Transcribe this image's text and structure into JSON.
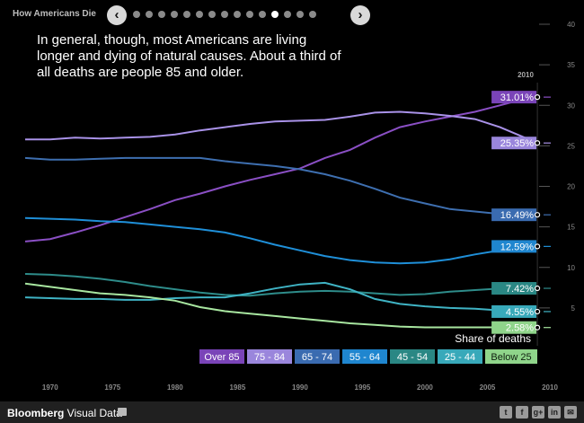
{
  "header": {
    "title": "How Americans Die",
    "prev_icon": "chevron-left-icon",
    "next_icon": "chevron-right-icon",
    "slide_count": 15,
    "active_slide": 11
  },
  "headline": "In general, though, most Americans are living longer and dying of natural causes. About a third of all deaths are people 85 and older.",
  "chart_data": {
    "type": "line",
    "xlabel": "",
    "ylabel": "Share of deaths",
    "xlim": [
      1968,
      2010
    ],
    "ylim": [
      0,
      40
    ],
    "x_ticks": [
      1970,
      1975,
      1980,
      1985,
      1990,
      1995,
      2000,
      2005,
      2010
    ],
    "y_ticks": [
      5,
      10,
      15,
      20,
      25,
      30,
      35,
      40
    ],
    "end_year_label": "2010",
    "x": [
      1968,
      1970,
      1972,
      1974,
      1976,
      1978,
      1980,
      1982,
      1984,
      1986,
      1988,
      1990,
      1992,
      1994,
      1996,
      1998,
      2000,
      2002,
      2004,
      2006,
      2008,
      2009
    ],
    "series": [
      {
        "name": "Over 85",
        "color": "#8a4fc4",
        "label_color": "#7a44b8",
        "end_label": "31.01%",
        "values": [
          13.2,
          13.5,
          14.3,
          15.2,
          16.2,
          17.2,
          18.3,
          19.1,
          20.0,
          20.8,
          21.5,
          22.2,
          23.5,
          24.5,
          26.0,
          27.3,
          28.0,
          28.6,
          29.2,
          30.0,
          30.8,
          31.01
        ]
      },
      {
        "name": "75 - 84",
        "color": "#a992e8",
        "label_color": "#9a86dc",
        "end_label": "25.35%",
        "values": [
          25.8,
          25.8,
          26.0,
          25.9,
          26.0,
          26.1,
          26.4,
          26.9,
          27.3,
          27.7,
          28.0,
          28.1,
          28.2,
          28.6,
          29.1,
          29.2,
          29.0,
          28.7,
          28.3,
          27.3,
          26.0,
          25.35
        ]
      },
      {
        "name": "65 - 74",
        "color": "#3e6fb0",
        "label_color": "#3a6bb0",
        "end_label": "16.49%",
        "values": [
          23.5,
          23.3,
          23.3,
          23.4,
          23.5,
          23.5,
          23.5,
          23.5,
          23.1,
          22.8,
          22.5,
          22.1,
          21.5,
          20.7,
          19.7,
          18.6,
          17.9,
          17.2,
          16.9,
          16.6,
          16.5,
          16.49
        ]
      },
      {
        "name": "55 - 64",
        "color": "#1f8fd8",
        "label_color": "#1f86cf",
        "end_label": "12.59%",
        "values": [
          16.1,
          16.0,
          15.9,
          15.7,
          15.6,
          15.3,
          15.0,
          14.7,
          14.3,
          13.6,
          12.8,
          12.1,
          11.4,
          10.9,
          10.6,
          10.5,
          10.6,
          11.0,
          11.6,
          12.1,
          12.5,
          12.59
        ]
      },
      {
        "name": "45 - 54",
        "color": "#2e8c8a",
        "label_color": "#2a8784",
        "end_label": "7.42%",
        "values": [
          9.2,
          9.1,
          8.9,
          8.6,
          8.2,
          7.7,
          7.3,
          6.9,
          6.6,
          6.5,
          6.8,
          7.0,
          7.1,
          7.0,
          6.8,
          6.6,
          6.7,
          7.0,
          7.2,
          7.4,
          7.42,
          7.42
        ]
      },
      {
        "name": "25 - 44",
        "color": "#3fb3c4",
        "label_color": "#38a9ba",
        "end_label": "4.55%",
        "values": [
          6.3,
          6.2,
          6.1,
          6.1,
          6.0,
          6.0,
          6.2,
          6.3,
          6.3,
          6.8,
          7.4,
          7.9,
          8.1,
          7.3,
          6.1,
          5.5,
          5.2,
          5.0,
          4.9,
          4.7,
          4.6,
          4.55
        ]
      },
      {
        "name": "Below 25",
        "color": "#a8e6a0",
        "label_color": "#8fd48a",
        "end_label": "2.58%",
        "values": [
          8.0,
          7.6,
          7.2,
          6.8,
          6.6,
          6.3,
          5.9,
          5.1,
          4.6,
          4.3,
          4.0,
          3.7,
          3.4,
          3.1,
          2.9,
          2.7,
          2.6,
          2.6,
          2.6,
          2.6,
          2.6,
          2.58
        ]
      }
    ]
  },
  "legend_label": "Share of deaths",
  "footer": {
    "brand_bold": "Bloomberg",
    "brand_rest": " Visual Data",
    "social": [
      {
        "name": "twitter-icon",
        "glyph": "t"
      },
      {
        "name": "facebook-icon",
        "glyph": "f"
      },
      {
        "name": "google-plus-icon",
        "glyph": "g+"
      },
      {
        "name": "linkedin-icon",
        "glyph": "in"
      },
      {
        "name": "email-icon",
        "glyph": "✉"
      }
    ]
  }
}
